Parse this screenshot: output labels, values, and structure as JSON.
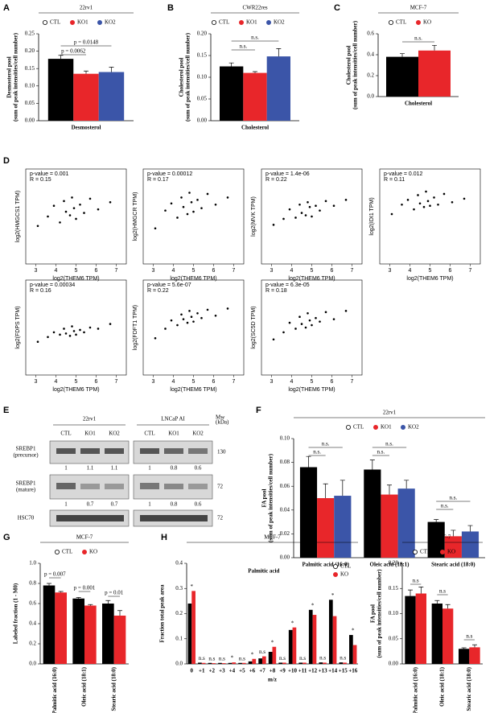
{
  "panel_labels": [
    "A",
    "B",
    "C",
    "D",
    "E",
    "F",
    "G",
    "H",
    "I"
  ],
  "chart_data": [
    {
      "type": "bar",
      "title": "22rv1",
      "categories": [
        "Desmosterol"
      ],
      "ylabel": [
        "Desmosterol pool",
        "(sum of peak intensities/cell number)"
      ],
      "series": [
        {
          "name": "CTL",
          "color": "#000000",
          "values": [
            0.178
          ],
          "errors": [
            0.01
          ]
        },
        {
          "name": "KO1",
          "color": "#e8262a",
          "values": [
            0.135
          ],
          "errors": [
            0.008
          ]
        },
        {
          "name": "KO2",
          "color": "#3b55a8",
          "values": [
            0.14
          ],
          "errors": [
            0.014
          ]
        }
      ],
      "ylim": [
        0,
        0.25
      ],
      "yticks": [
        {
          "value": 0,
          "label": "0.00"
        },
        0.05,
        {
          "value": 0.1,
          "label": "0.10"
        },
        0.15,
        {
          "value": 0.2,
          "label": "0.20"
        },
        0.25
      ],
      "annotations": [
        "p = 0.0062",
        "p = 0.0148"
      ]
    },
    {
      "type": "bar",
      "title": "CWR22res",
      "categories": [
        "Cholesterol"
      ],
      "ylabel": [
        "Cholesterol pool",
        "(sum of peak intensities/cell number)"
      ],
      "series": [
        {
          "name": "CTL",
          "color": "#000000",
          "values": [
            0.125
          ],
          "errors": [
            0.008
          ]
        },
        {
          "name": "KO1",
          "color": "#e8262a",
          "values": [
            0.11
          ],
          "errors": [
            0.003
          ]
        },
        {
          "name": "KO2",
          "color": "#3b55a8",
          "values": [
            0.148
          ],
          "errors": [
            0.018
          ]
        }
      ],
      "ylim": [
        0,
        0.2
      ],
      "yticks": [
        {
          "value": 0,
          "label": "0.00"
        },
        0.05,
        {
          "value": 0.1,
          "label": "0.10"
        },
        0.15,
        {
          "value": 0.2,
          "label": "0.20"
        }
      ],
      "annotations": [
        "n.s.",
        "n.s."
      ]
    },
    {
      "type": "bar",
      "title": "MCF-7",
      "categories": [
        "Cholesterol"
      ],
      "ylabel": [
        "Cholesterol pool",
        "(sum of peak intensities/cell number)"
      ],
      "series": [
        {
          "name": "CTL",
          "color": "#000000",
          "values": [
            0.38
          ],
          "errors": [
            0.03
          ]
        },
        {
          "name": "KO",
          "color": "#e8262a",
          "values": [
            0.44
          ],
          "errors": [
            0.05
          ]
        }
      ],
      "ylim": [
        0,
        0.6
      ],
      "yticks": [
        {
          "value": 0,
          "label": "0.0"
        },
        0.2,
        0.4,
        0.6
      ],
      "annotations": [
        "n.s."
      ]
    },
    {
      "type": "scatter",
      "xlabel": "log2(THEM6 TPM)",
      "ylabel": "log2(HMGCS1 TPM)",
      "annotations": [
        "p-value = 0.001",
        "R = 0.15"
      ],
      "xlim": [
        2.5,
        7.5
      ],
      "ylim": [
        0,
        8
      ],
      "xticks": [
        3,
        4,
        5,
        6,
        7
      ],
      "x": [
        3.1,
        3.6,
        3.9,
        4.2,
        4.4,
        4.5,
        4.7,
        4.8,
        4.9,
        5.0,
        5.2,
        5.4,
        5.7,
        6.1,
        6.7
      ],
      "y": [
        3.2,
        4.0,
        4.9,
        3.5,
        5.3,
        4.4,
        4.1,
        5.6,
        4.7,
        3.8,
        5.0,
        4.3,
        5.5,
        4.6,
        5.2
      ]
    },
    {
      "type": "scatter",
      "xlabel": "log2(THEM6 TPM)",
      "ylabel": "log2(HMGCR TPM)",
      "annotations": [
        "p-value = 0.00012",
        "R = 0.17"
      ],
      "xlim": [
        2.5,
        7.5
      ],
      "ylim": [
        0,
        8
      ],
      "xticks": [
        3,
        4,
        5,
        6,
        7
      ],
      "x": [
        3.1,
        3.6,
        3.9,
        4.2,
        4.4,
        4.5,
        4.7,
        4.8,
        4.9,
        5.0,
        5.2,
        5.4,
        5.7,
        6.1,
        6.7
      ],
      "y": [
        3.0,
        4.5,
        5.1,
        3.9,
        5.6,
        4.8,
        4.2,
        6.0,
        5.2,
        4.4,
        5.4,
        4.7,
        5.9,
        5.0,
        5.6
      ]
    },
    {
      "type": "scatter",
      "xlabel": "log2(THEM6 TPM)",
      "ylabel": "log2(MVK TPM)",
      "annotations": [
        "p-value = 1.4e-06",
        "R = 0.22"
      ],
      "xlim": [
        2.5,
        7.5
      ],
      "ylim": [
        0,
        8
      ],
      "xticks": [
        3,
        4,
        5,
        6,
        7
      ],
      "x": [
        3.1,
        3.6,
        3.9,
        4.2,
        4.4,
        4.5,
        4.7,
        4.8,
        4.9,
        5.0,
        5.2,
        5.4,
        5.7,
        6.1,
        6.7
      ],
      "y": [
        3.3,
        3.8,
        4.6,
        3.9,
        5.0,
        4.3,
        4.1,
        5.2,
        4.8,
        4.0,
        4.9,
        4.5,
        5.3,
        4.9,
        5.4
      ]
    },
    {
      "type": "scatter",
      "xlabel": "log2(THEM6 TPM)",
      "ylabel": "log2(IDI1 TPM)",
      "annotations": [
        "p-value = 0.012",
        "R = 0.11"
      ],
      "xlim": [
        2.5,
        7.5
      ],
      "ylim": [
        0,
        8
      ],
      "xticks": [
        3,
        4,
        5,
        6,
        7
      ],
      "x": [
        3.1,
        3.6,
        3.9,
        4.2,
        4.4,
        4.5,
        4.7,
        4.8,
        4.9,
        5.0,
        5.2,
        5.4,
        5.7,
        6.1,
        6.7
      ],
      "y": [
        4.2,
        5.0,
        5.4,
        4.6,
        5.8,
        5.1,
        4.8,
        6.1,
        5.3,
        4.9,
        5.6,
        5.0,
        5.9,
        5.2,
        5.5
      ]
    },
    {
      "type": "scatter",
      "xlabel": "log2(THEM6 TPM)",
      "ylabel": "log2(FDPS TPM)",
      "annotations": [
        "p-value = 0.00034",
        "R = 0.16"
      ],
      "xlim": [
        2.5,
        7.5
      ],
      "ylim": [
        0,
        8
      ],
      "xticks": [
        3,
        4,
        5,
        6,
        7
      ],
      "x": [
        3.1,
        3.6,
        3.9,
        4.2,
        4.4,
        4.5,
        4.7,
        4.8,
        4.9,
        5.0,
        5.2,
        5.4,
        5.7,
        6.1,
        6.7
      ],
      "y": [
        2.8,
        3.2,
        3.6,
        3.4,
        3.9,
        3.5,
        3.3,
        4.1,
        3.7,
        3.4,
        3.8,
        3.6,
        4.0,
        3.9,
        4.3
      ]
    },
    {
      "type": "scatter",
      "xlabel": "log2(THEM6 TPM)",
      "ylabel": "log2(FDFT1 TPM)",
      "annotations": [
        "p-value = 5.6e-07",
        "R = 0.22"
      ],
      "xlim": [
        2.5,
        7.5
      ],
      "ylim": [
        0,
        8
      ],
      "xticks": [
        3,
        4,
        5,
        6,
        7
      ],
      "x": [
        3.1,
        3.6,
        3.9,
        4.2,
        4.4,
        4.5,
        4.7,
        4.8,
        4.9,
        5.0,
        5.2,
        5.4,
        5.7,
        6.1,
        6.7
      ],
      "y": [
        3.1,
        3.9,
        4.6,
        4.2,
        5.1,
        4.7,
        4.4,
        5.4,
        4.9,
        4.5,
        5.2,
        4.8,
        5.5,
        5.0,
        5.6
      ]
    },
    {
      "type": "scatter",
      "xlabel": "log2(THEM6 TPM)",
      "ylabel": "log2(SC5D TPM)",
      "annotations": [
        "p-value = 6.3e-05",
        "R = 0.18"
      ],
      "xlim": [
        2.5,
        7.5
      ],
      "ylim": [
        0,
        8
      ],
      "xticks": [
        3,
        4,
        5,
        6,
        7
      ],
      "x": [
        3.1,
        3.6,
        3.9,
        4.2,
        4.4,
        4.5,
        4.7,
        4.8,
        4.9,
        5.0,
        5.2,
        5.4,
        5.7,
        6.1,
        6.7
      ],
      "y": [
        3.0,
        3.6,
        4.4,
        3.9,
        4.9,
        4.3,
        4.0,
        5.2,
        4.6,
        4.2,
        4.8,
        4.5,
        5.3,
        4.7,
        5.4
      ]
    },
    {
      "type": "bar",
      "title": "22rv1",
      "categories": [
        "Palmitic acid (16:0)",
        "Oleic acid (18:1)",
        "Stearic acid (18:0)"
      ],
      "ylabel": [
        "FA pool",
        "(sum of peak intensities/cell number)"
      ],
      "series": [
        {
          "name": "CTL",
          "color": "#000000",
          "values": [
            0.076,
            0.074,
            0.03
          ],
          "errors": [
            0.009,
            0.008,
            0.002
          ]
        },
        {
          "name": "KO1",
          "color": "#e8262a",
          "values": [
            0.05,
            0.053,
            0.018
          ],
          "errors": [
            0.012,
            0.008,
            0.005
          ]
        },
        {
          "name": "KO2",
          "color": "#3b55a8",
          "values": [
            0.052,
            0.058,
            0.022
          ],
          "errors": [
            0.013,
            0.007,
            0.005
          ]
        }
      ],
      "ylim": [
        0,
        0.1
      ],
      "yticks": [
        {
          "value": 0,
          "label": "0.00"
        },
        0.02,
        0.04,
        0.06,
        0.08,
        {
          "value": 0.1,
          "label": "0.10"
        }
      ],
      "annotations": [
        "n.s.",
        "n.s.",
        "n.s.",
        "n.s.",
        "n.s.",
        "n.s."
      ]
    },
    {
      "type": "bar",
      "title": "MCF-7",
      "categories": [
        "Palmitic acid (16:0)",
        "Oleic acid (18:1)",
        "Stearic acid (18:0)"
      ],
      "ylabel": [
        "Labeled fraction (1 - M0)"
      ],
      "series": [
        {
          "name": "CTL",
          "color": "#000000",
          "values": [
            0.78,
            0.65,
            0.6
          ],
          "errors": [
            0.02,
            0.01,
            0.03
          ]
        },
        {
          "name": "KO",
          "color": "#e8262a",
          "values": [
            0.71,
            0.58,
            0.48
          ],
          "errors": [
            0.01,
            0.01,
            0.05
          ]
        }
      ],
      "ylim": [
        0,
        1
      ],
      "yticks": [
        {
          "value": 0,
          "label": "0.0"
        },
        0.2,
        0.4,
        0.6,
        0.8,
        {
          "value": 1,
          "label": "1.0"
        }
      ],
      "annotations": [
        "p = 0.007",
        "p = 0.001",
        "p = 0.01"
      ]
    },
    {
      "type": "bar",
      "title": "MCF-7",
      "subtitle": "Palmitic acid",
      "xlabel": "m/z",
      "categories": [
        "0",
        "+1",
        "+2",
        "+3",
        "+4",
        "+5",
        "+6",
        "+7",
        "+8",
        "+9",
        "+10",
        "+11",
        "+12",
        "+13",
        "+14",
        "+15",
        "+16"
      ],
      "ylabel": [
        "Fraction total peak area"
      ],
      "series": [
        {
          "name": "CTL",
          "color": "#000000",
          "values": [
            0.24,
            0.005,
            0.004,
            0.004,
            0.004,
            0.004,
            0.01,
            0.022,
            0.048,
            0.005,
            0.135,
            0.005,
            0.215,
            0.006,
            0.255,
            0.006,
            0.115
          ]
        },
        {
          "name": "KO",
          "color": "#e8262a",
          "values": [
            0.29,
            0.004,
            0.003,
            0.003,
            0.006,
            0.004,
            0.02,
            0.03,
            0.068,
            0.005,
            0.145,
            0.005,
            0.195,
            0.005,
            0.19,
            0.005,
            0.075
          ]
        }
      ],
      "ylim": [
        0,
        0.4
      ],
      "yticks": [
        {
          "value": 0,
          "label": "0.0"
        },
        0.1,
        0.2,
        0.3,
        0.4
      ],
      "point_labels": [
        "*",
        "n.s",
        "n.s",
        "n.s",
        "*",
        "n.s",
        "*",
        "n.s",
        "*",
        "n.s",
        "*",
        "n.s",
        "*",
        "n.s",
        "*",
        "n.s",
        "*"
      ]
    },
    {
      "type": "bar",
      "title": "MCF-7",
      "categories": [
        "Palmitic acid (16:0)",
        "Oleic acid (18:1)",
        "Stearic acid (18:0)"
      ],
      "ylabel": [
        "FA pool",
        "(sum of peak intensities/cell number)"
      ],
      "series": [
        {
          "name": "CTL",
          "color": "#000000",
          "values": [
            0.135,
            0.12,
            0.03
          ],
          "errors": [
            0.012,
            0.006,
            0.002
          ]
        },
        {
          "name": "KO",
          "color": "#e8262a",
          "values": [
            0.14,
            0.11,
            0.033
          ],
          "errors": [
            0.013,
            0.008,
            0.005
          ]
        }
      ],
      "ylim": [
        0,
        0.2
      ],
      "yticks": [
        {
          "value": 0,
          "label": "0.00"
        },
        0.05,
        {
          "value": 0.1,
          "label": "0.10"
        },
        0.15,
        {
          "value": 0.2,
          "label": "0.20"
        }
      ],
      "annotations": [
        "n.s",
        "n.s",
        "n.s"
      ]
    }
  ],
  "blot": {
    "cell_lines": [
      "22rv1",
      "LNCaP AI"
    ],
    "mw_header": [
      "Mw",
      "(kDa)"
    ],
    "lanes": [
      "CTL",
      "KO1",
      "KO2",
      "CTL",
      "KO1",
      "KO2"
    ],
    "rows": [
      {
        "label": [
          "SREBP1",
          "(precursor)"
        ],
        "mw": 130,
        "quant": [
          1,
          1.1,
          1.1,
          1,
          0.8,
          0.6
        ]
      },
      {
        "label": [
          "SREBP1",
          "(mature)"
        ],
        "mw": 72,
        "quant": [
          1,
          0.7,
          0.7,
          1,
          0.8,
          0.6
        ]
      },
      {
        "label": [
          "HSC70"
        ],
        "mw": 72
      }
    ]
  }
}
